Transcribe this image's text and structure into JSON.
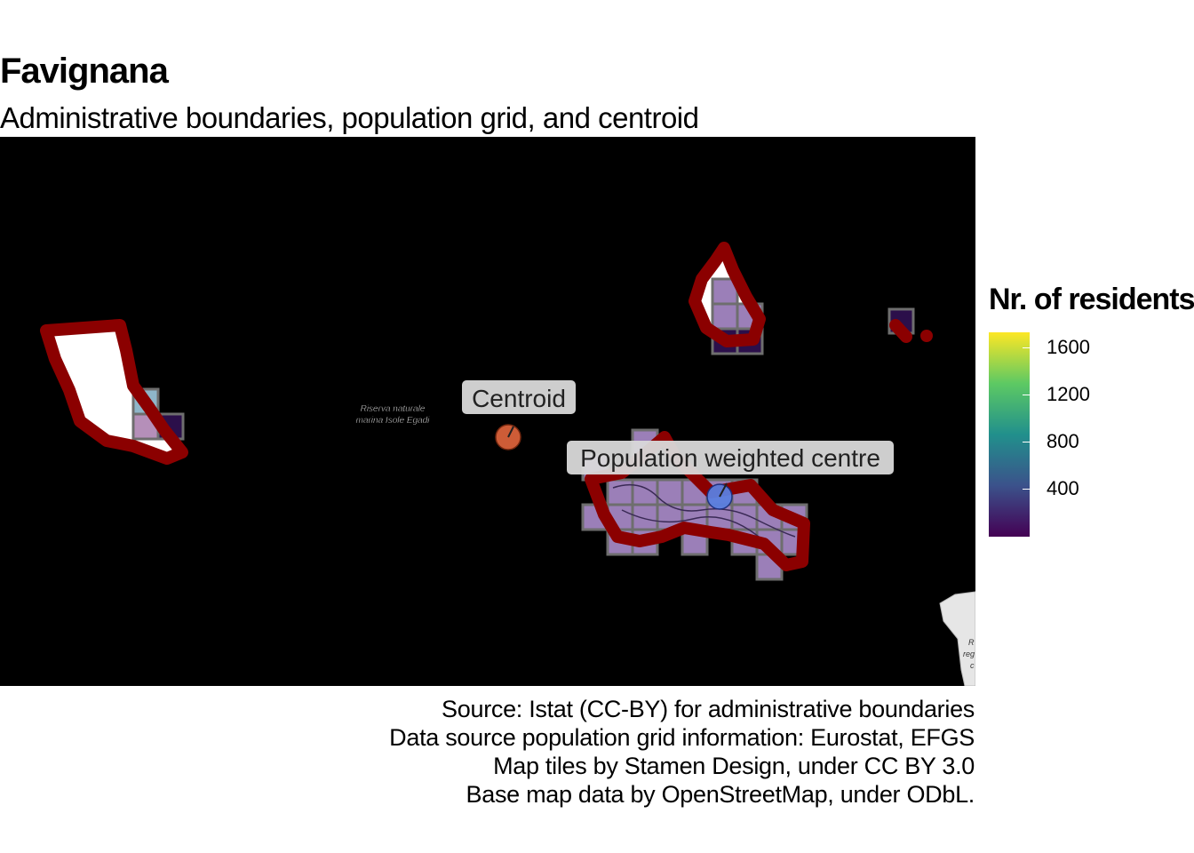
{
  "title": "Favignana",
  "subtitle": "Administrative boundaries, population grid, and centroid",
  "map": {
    "background": "#000000",
    "boundary_color": "#8b0000",
    "grid_fill": "#9b7fb8",
    "grid_stroke": "#6e6e6e",
    "labels": {
      "centroid": "Centroid",
      "population_centre": "Population weighted centre",
      "reserve_line1": "Riserva naturale",
      "reserve_line2": "marina Isole Egadi",
      "corner_text_1": "R",
      "corner_text_2": "reg",
      "corner_text_3": "c"
    },
    "centroid_color": "#d9613a",
    "population_centre_color": "#5b7fe0"
  },
  "legend": {
    "title": "Nr. of residents",
    "ticks": [
      {
        "label": "1600",
        "value": 1600
      },
      {
        "label": "1200",
        "value": 1200
      },
      {
        "label": "800",
        "value": 800
      },
      {
        "label": "400",
        "value": 400
      }
    ],
    "min": 0,
    "max": 1740,
    "colors": [
      "#440154",
      "#3b528b",
      "#21908c",
      "#5dc963",
      "#fde725"
    ]
  },
  "caption": {
    "line1": "Source: Istat (CC-BY) for administrative boundaries",
    "line2": "Data source population grid information: Eurostat, EFGS",
    "line3": "Map tiles by Stamen Design, under CC BY 3.0",
    "line4": "Base map data by OpenStreetMap, under ODbL."
  }
}
